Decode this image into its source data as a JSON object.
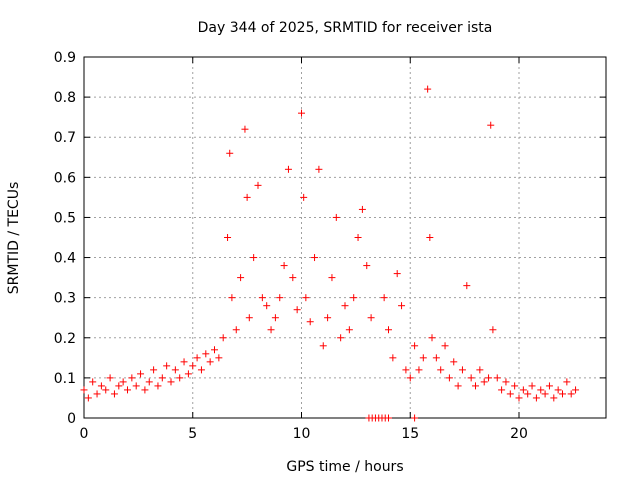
{
  "chart_data": {
    "type": "scatter",
    "title": "Day 344 of 2025, SRMTID for receiver ista",
    "xlabel": "GPS time / hours",
    "ylabel": "SRMTID / TECUs",
    "xlim": [
      0,
      24
    ],
    "ylim": [
      0,
      0.9
    ],
    "x_ticks": [
      0,
      5,
      10,
      15,
      20
    ],
    "x_tick_labels": [
      "0",
      "5",
      "10",
      "15",
      "20"
    ],
    "y_ticks": [
      0,
      0.1,
      0.2,
      0.3,
      0.4,
      0.5,
      0.6,
      0.7,
      0.8,
      0.9
    ],
    "y_tick_labels": [
      "0",
      "0.1",
      "0.2",
      "0.3",
      "0.4",
      "0.5",
      "0.6",
      "0.7",
      "0.8",
      "0.9"
    ],
    "grid": true,
    "marker": "+",
    "marker_color": "#ff0000",
    "series": [
      {
        "name": "SRMTID",
        "x": [
          0.0,
          0.2,
          0.4,
          0.6,
          0.8,
          1.0,
          1.2,
          1.4,
          1.6,
          1.8,
          2.0,
          2.2,
          2.4,
          2.6,
          2.8,
          3.0,
          3.2,
          3.4,
          3.6,
          3.8,
          4.0,
          4.2,
          4.4,
          4.6,
          4.8,
          5.0,
          5.2,
          5.4,
          5.6,
          5.8,
          6.0,
          6.2,
          6.4,
          6.6,
          6.7,
          6.8,
          7.0,
          7.2,
          7.4,
          7.5,
          7.6,
          7.8,
          8.0,
          8.2,
          8.4,
          8.6,
          8.8,
          9.0,
          9.2,
          9.4,
          9.6,
          9.8,
          10.0,
          10.1,
          10.2,
          10.4,
          10.6,
          10.8,
          11.0,
          11.2,
          11.4,
          11.6,
          11.8,
          12.0,
          12.2,
          12.4,
          12.6,
          12.8,
          13.0,
          13.2,
          13.8,
          14.0,
          14.2,
          14.4,
          14.6,
          14.8,
          15.0,
          15.2,
          15.4,
          15.6,
          15.8,
          15.9,
          16.0,
          16.2,
          16.4,
          16.6,
          16.8,
          17.0,
          17.2,
          17.4,
          17.6,
          17.8,
          18.0,
          18.2,
          18.4,
          18.6,
          18.7,
          18.8,
          19.0,
          19.2,
          19.4,
          19.6,
          19.8,
          20.0,
          20.2,
          20.4,
          20.6,
          20.8,
          21.0,
          21.2,
          21.4,
          21.6,
          21.8,
          22.0,
          22.2,
          22.4,
          22.6,
          13.1,
          13.25,
          13.4,
          13.55,
          13.7,
          13.85,
          14.0,
          15.2
        ],
        "y": [
          0.07,
          0.05,
          0.09,
          0.06,
          0.08,
          0.07,
          0.1,
          0.06,
          0.08,
          0.09,
          0.07,
          0.1,
          0.08,
          0.11,
          0.07,
          0.09,
          0.12,
          0.08,
          0.1,
          0.13,
          0.09,
          0.12,
          0.1,
          0.14,
          0.11,
          0.13,
          0.15,
          0.12,
          0.16,
          0.14,
          0.17,
          0.15,
          0.2,
          0.45,
          0.66,
          0.3,
          0.22,
          0.35,
          0.72,
          0.55,
          0.25,
          0.4,
          0.58,
          0.3,
          0.28,
          0.22,
          0.25,
          0.3,
          0.38,
          0.62,
          0.35,
          0.27,
          0.76,
          0.55,
          0.3,
          0.24,
          0.4,
          0.62,
          0.18,
          0.25,
          0.35,
          0.5,
          0.2,
          0.28,
          0.22,
          0.3,
          0.45,
          0.52,
          0.38,
          0.25,
          0.3,
          0.22,
          0.15,
          0.36,
          0.28,
          0.12,
          0.1,
          0.18,
          0.12,
          0.15,
          0.82,
          0.45,
          0.2,
          0.15,
          0.12,
          0.18,
          0.1,
          0.14,
          0.08,
          0.12,
          0.33,
          0.1,
          0.08,
          0.12,
          0.09,
          0.1,
          0.73,
          0.22,
          0.1,
          0.07,
          0.09,
          0.06,
          0.08,
          0.05,
          0.07,
          0.06,
          0.08,
          0.05,
          0.07,
          0.06,
          0.08,
          0.05,
          0.07,
          0.06,
          0.09,
          0.06,
          0.07,
          0.0,
          0.0,
          0.0,
          0.0,
          0.0,
          0.0,
          0.0,
          0.0
        ]
      }
    ]
  }
}
